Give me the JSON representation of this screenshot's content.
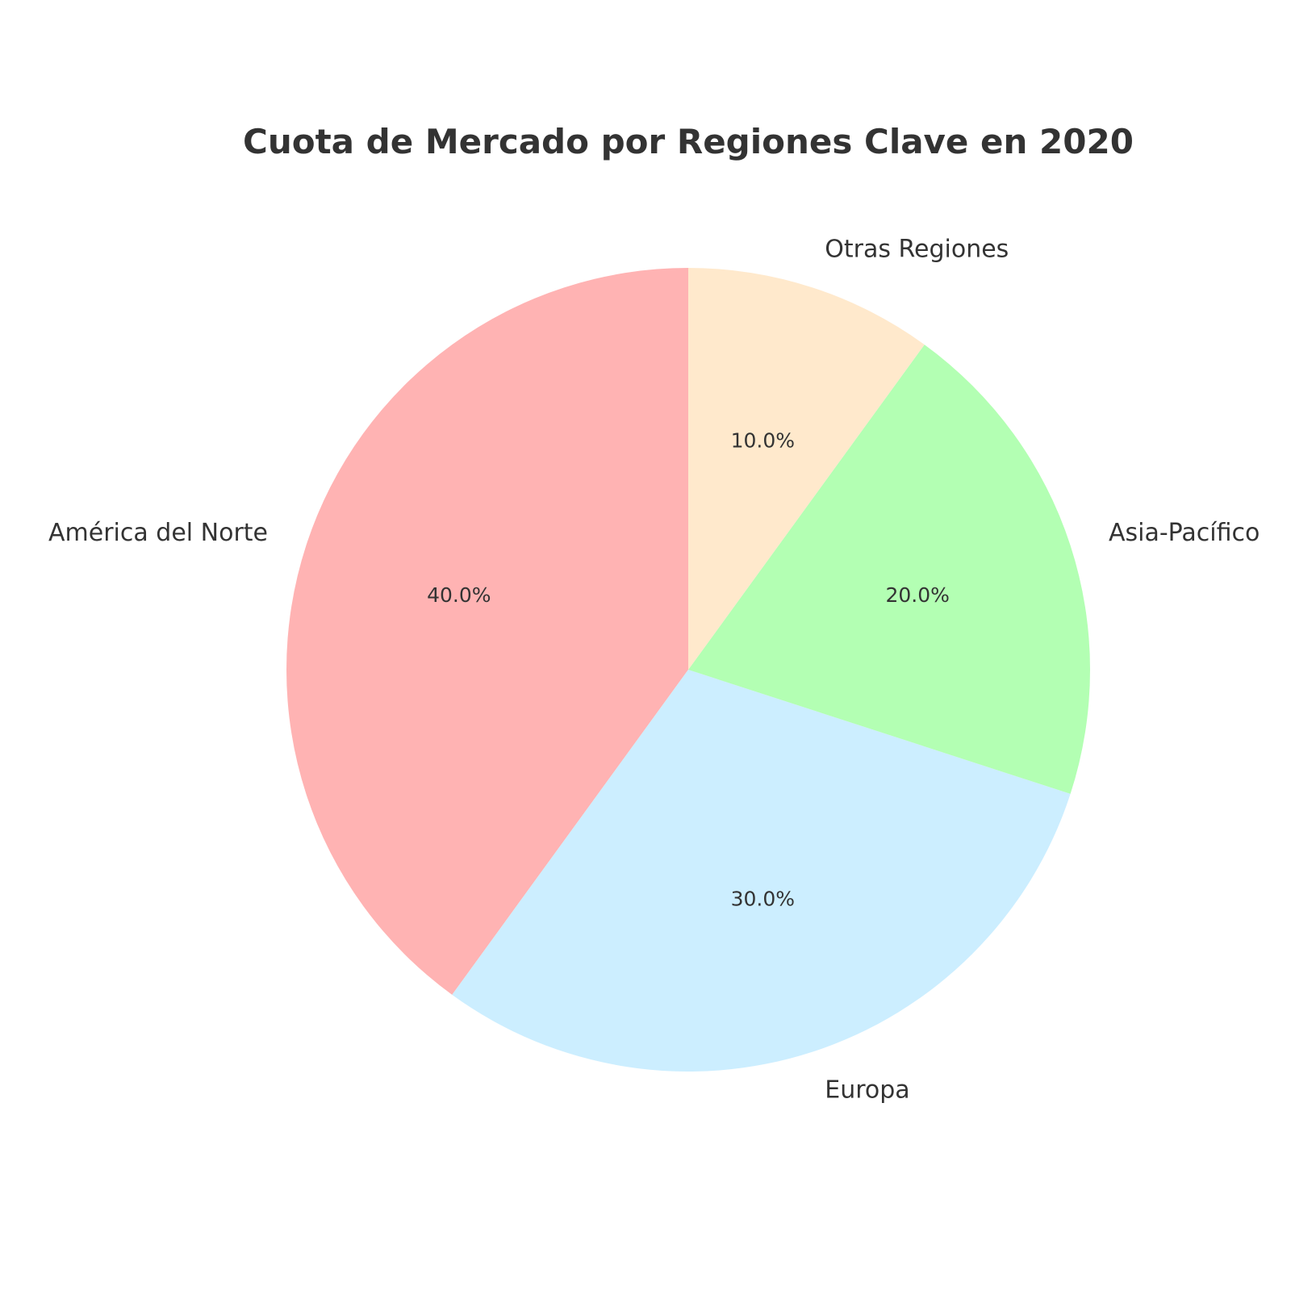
{
  "chart_data": {
    "type": "pie",
    "title": "Cuota de Mercado por Regiones Clave en 2020",
    "categories": [
      "América del Norte",
      "Europa",
      "Asia-Pacífico",
      "Otras Regiones"
    ],
    "values": [
      40.0,
      30.0,
      20.0,
      10.0
    ],
    "percent_labels": [
      "40.0%",
      "30.0%",
      "20.0%",
      "10.0%"
    ],
    "colors": [
      "#ffb3b3",
      "#cceeff",
      "#b3ffb3",
      "#ffe9cc"
    ],
    "start_angle_deg": 90,
    "direction": "counterclockwise",
    "legend": "none"
  }
}
